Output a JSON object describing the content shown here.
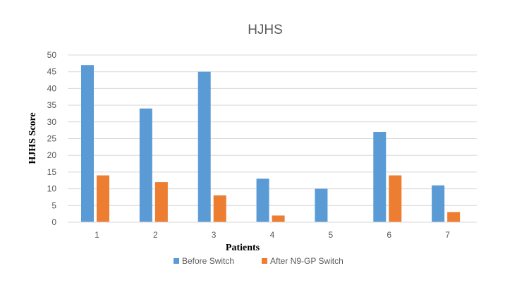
{
  "chart_data": {
    "type": "bar",
    "title": "HJHS",
    "xlabel": "Patients",
    "ylabel": "HJHS Score",
    "categories": [
      "1",
      "2",
      "3",
      "4",
      "5",
      "6",
      "7"
    ],
    "series": [
      {
        "name": "Before Switch",
        "color": "#5b9bd5",
        "values": [
          47,
          34,
          45,
          13,
          10,
          27,
          11
        ]
      },
      {
        "name": "After N9-GP Switch",
        "color": "#ed7d31",
        "values": [
          14,
          12,
          8,
          2,
          0,
          14,
          3
        ]
      }
    ],
    "ylim": [
      0,
      50
    ],
    "yticks": [
      0,
      5,
      10,
      15,
      20,
      25,
      30,
      35,
      40,
      45,
      50
    ],
    "grid": true,
    "legend": "bottom"
  }
}
